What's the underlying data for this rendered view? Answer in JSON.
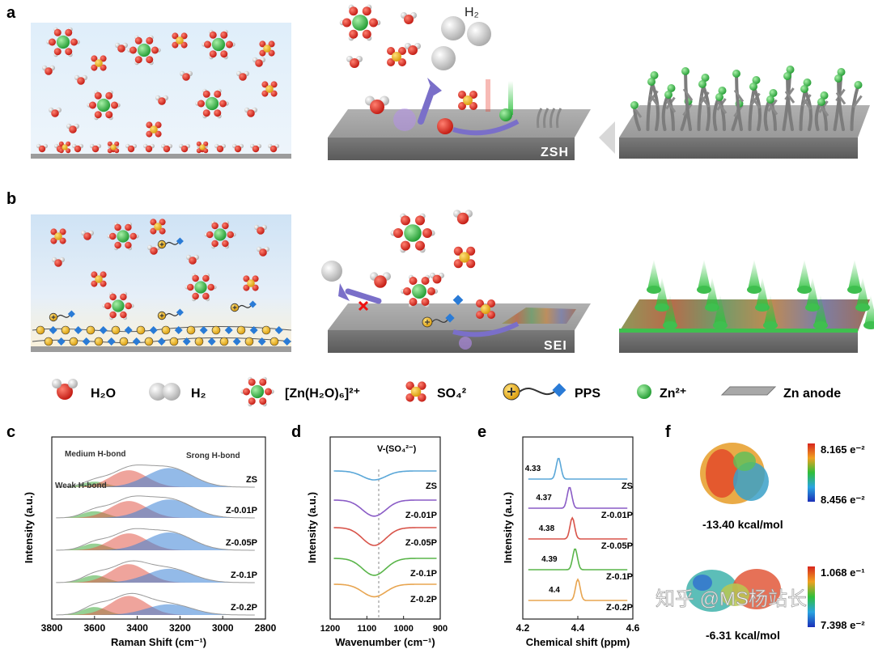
{
  "panels": {
    "a": "a",
    "b": "b",
    "c": "c",
    "d": "d",
    "e": "e",
    "f": "f"
  },
  "schematic": {
    "h2_label": "H₂",
    "zsh_label": "ZSH",
    "sei_label": "SEI"
  },
  "legend": {
    "h2o": "H₂O",
    "h2": "H₂",
    "zn_complex": "[Zn(H₂O)₆]²⁺",
    "so4": "SO₄²",
    "pps": "PPS",
    "zn_ion": "Zn²⁺",
    "zn_anode": "Zn anode"
  },
  "panel_c": {
    "ylabel": "Intensity (a.u.)",
    "xlabel": "Raman Shift (cm⁻¹)",
    "ticks": [
      "3800",
      "3600",
      "3400",
      "3200",
      "3000",
      "2800"
    ],
    "ann_medium": "Medium H-bond",
    "ann_strong": "Srong H-bond",
    "ann_weak": "Weak H-bond",
    "samples": [
      "ZS",
      "Z-0.01P",
      "Z-0.05P",
      "Z-0.1P",
      "Z-0.2P"
    ]
  },
  "panel_d": {
    "ylabel": "Intensity (a.u.)",
    "xlabel": "Wavenumber (cm⁻¹)",
    "ticks": [
      "1200",
      "1100",
      "1000",
      "900"
    ],
    "annotation": "V-(SO₄²⁻)",
    "samples": [
      "ZS",
      "Z-0.01P",
      "Z-0.05P",
      "Z-0.1P",
      "Z-0.2P"
    ]
  },
  "panel_e": {
    "ylabel": "Intensity (a.u.)",
    "xlabel": "Chemical shift (ppm)",
    "ticks": [
      "4.2",
      "4.4",
      "4.6"
    ],
    "peak_labels": [
      "4.33",
      "4.37",
      "4.38",
      "4.39",
      "4.4"
    ],
    "samples": [
      "ZS",
      "Z-0.01P",
      "Z-0.05P",
      "Z-0.1P",
      "Z-0.2P"
    ]
  },
  "panel_f": {
    "top_max": "8.165 e⁻²",
    "top_min": "8.456 e⁻²",
    "top_energy": "-13.40 kcal/mol",
    "bottom_max": "1.068 e⁻¹",
    "bottom_min": "7.398 e⁻²",
    "bottom_energy": "-6.31 kcal/mol"
  },
  "watermark": "知乎 @MS杨站长",
  "colors": {
    "water_o": "#d9261c",
    "zn_green": "#3fbf4f",
    "sulfate": "#f0b21c",
    "substrate": "#8e8e8e",
    "pps_blue": "#2a7bd6"
  }
}
